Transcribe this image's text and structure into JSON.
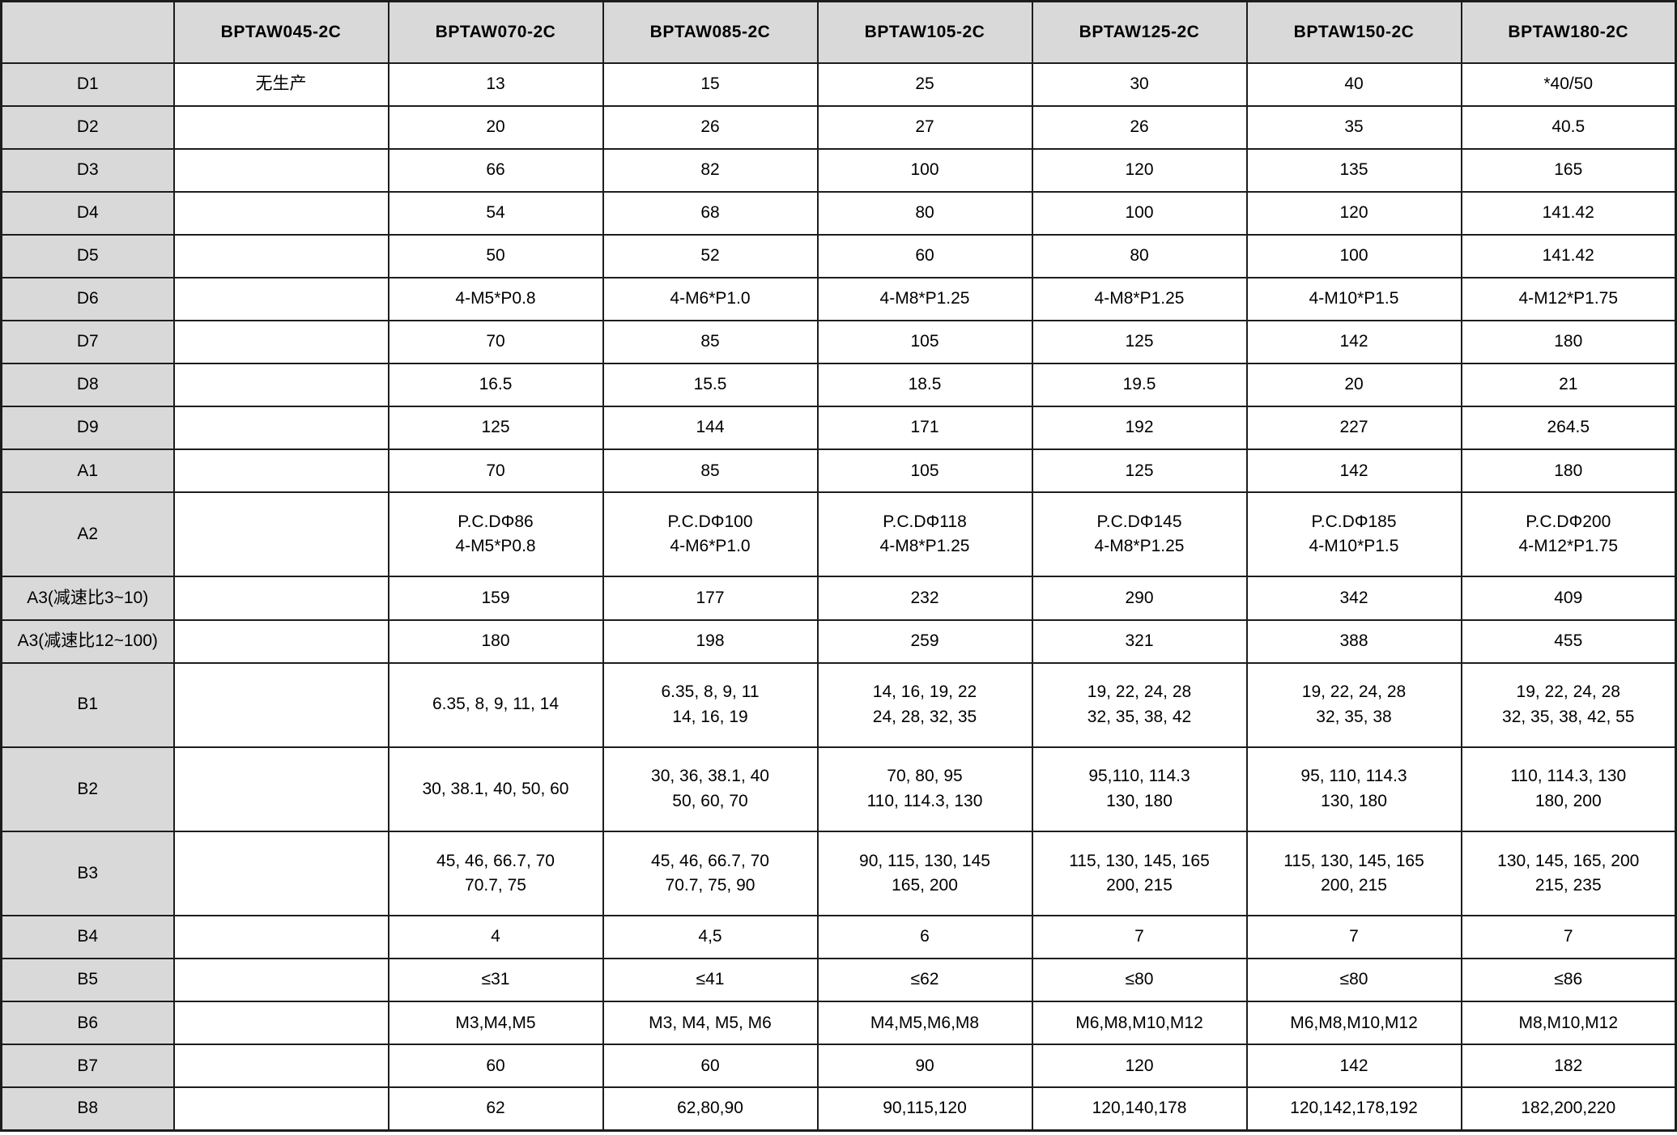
{
  "colors": {
    "header_bg": "#d9d9d9",
    "border": "#1d1d1d",
    "cell_bg": "#ffffff",
    "text": "#000000"
  },
  "table": {
    "columns": [
      "",
      "BPTAW045-2C",
      "BPTAW070-2C",
      "BPTAW085-2C",
      "BPTAW105-2C",
      "BPTAW125-2C",
      "BPTAW150-2C",
      "BPTAW180-2C"
    ],
    "rows": [
      {
        "label": "D1",
        "size": "normal",
        "cells": [
          "无生产",
          "13",
          "15",
          "25",
          "30",
          "40",
          "*40/50"
        ]
      },
      {
        "label": "D2",
        "size": "normal",
        "cells": [
          "",
          "20",
          "26",
          "27",
          "26",
          "35",
          "40.5"
        ]
      },
      {
        "label": "D3",
        "size": "normal",
        "cells": [
          "",
          "66",
          "82",
          "100",
          "120",
          "135",
          "165"
        ]
      },
      {
        "label": "D4",
        "size": "normal",
        "cells": [
          "",
          "54",
          "68",
          "80",
          "100",
          "120",
          "141.42"
        ]
      },
      {
        "label": "D5",
        "size": "normal",
        "cells": [
          "",
          "50",
          "52",
          "60",
          "80",
          "100",
          "141.42"
        ]
      },
      {
        "label": "D6",
        "size": "normal",
        "cells": [
          "",
          "4-M5*P0.8",
          "4-M6*P1.0",
          "4-M8*P1.25",
          "4-M8*P1.25",
          "4-M10*P1.5",
          "4-M12*P1.75"
        ]
      },
      {
        "label": "D7",
        "size": "normal",
        "cells": [
          "",
          "70",
          "85",
          "105",
          "125",
          "142",
          "180"
        ]
      },
      {
        "label": "D8",
        "size": "normal",
        "cells": [
          "",
          "16.5",
          "15.5",
          "18.5",
          "19.5",
          "20",
          "21"
        ]
      },
      {
        "label": "D9",
        "size": "normal",
        "cells": [
          "",
          "125",
          "144",
          "171",
          "192",
          "227",
          "264.5"
        ]
      },
      {
        "label": "A1",
        "size": "normal",
        "cells": [
          "",
          "70",
          "85",
          "105",
          "125",
          "142",
          "180"
        ]
      },
      {
        "label": "A2",
        "size": "tall",
        "cells": [
          "",
          "P.C.DΦ86\n4-M5*P0.8",
          "P.C.DΦ100\n4-M6*P1.0",
          "P.C.DΦ118\n4-M8*P1.25",
          "P.C.DΦ145\n4-M8*P1.25",
          "P.C.DΦ185\n4-M10*P1.5",
          "P.C.DΦ200\n4-M12*P1.75"
        ]
      },
      {
        "label": "A3(减速比3~10)",
        "size": "normal",
        "cells": [
          "",
          "159",
          "177",
          "232",
          "290",
          "342",
          "409"
        ]
      },
      {
        "label": "A3(减速比12~100)",
        "size": "normal",
        "cells": [
          "",
          "180",
          "198",
          "259",
          "321",
          "388",
          "455"
        ]
      },
      {
        "label": "B1",
        "size": "tall",
        "cells": [
          "",
          "6.35, 8, 9, 11, 14",
          "6.35, 8, 9, 11\n14, 16, 19",
          "14, 16, 19, 22\n24, 28, 32, 35",
          "19, 22, 24, 28\n32, 35, 38, 42",
          "19, 22, 24, 28\n32, 35, 38",
          "19, 22, 24, 28\n32, 35, 38, 42, 55"
        ]
      },
      {
        "label": "B2",
        "size": "tall",
        "cells": [
          "",
          "30, 38.1, 40, 50, 60",
          "30, 36, 38.1, 40\n50, 60, 70",
          "70, 80, 95\n110, 114.3, 130",
          "95,110, 114.3\n130, 180",
          "95, 110, 114.3\n130, 180",
          "110, 114.3, 130\n180, 200"
        ]
      },
      {
        "label": "B3",
        "size": "tall",
        "cells": [
          "",
          "45, 46, 66.7, 70\n70.7, 75",
          "45, 46, 66.7, 70\n70.7, 75, 90",
          "90, 115, 130, 145\n165, 200",
          "115, 130, 145, 165\n200, 215",
          "115, 130, 145, 165\n200, 215",
          "130, 145, 165, 200\n215, 235"
        ]
      },
      {
        "label": "B4",
        "size": "normal",
        "cells": [
          "",
          "4",
          "4,5",
          "6",
          "7",
          "7",
          "7"
        ]
      },
      {
        "label": "B5",
        "size": "normal",
        "cells": [
          "",
          "≤31",
          "≤41",
          "≤62",
          "≤80",
          "≤80",
          "≤86"
        ]
      },
      {
        "label": "B6",
        "size": "normal",
        "cells": [
          "",
          "M3,M4,M5",
          "M3, M4, M5, M6",
          "M4,M5,M6,M8",
          "M6,M8,M10,M12",
          "M6,M8,M10,M12",
          "M8,M10,M12"
        ]
      },
      {
        "label": "B7",
        "size": "normal",
        "cells": [
          "",
          "60",
          "60",
          "90",
          "120",
          "142",
          "182"
        ]
      },
      {
        "label": "B8",
        "size": "normal",
        "cells": [
          "",
          "62",
          "62,80,90",
          "90,115,120",
          "120,140,178",
          "120,142,178,192",
          "182,200,220"
        ]
      }
    ]
  }
}
